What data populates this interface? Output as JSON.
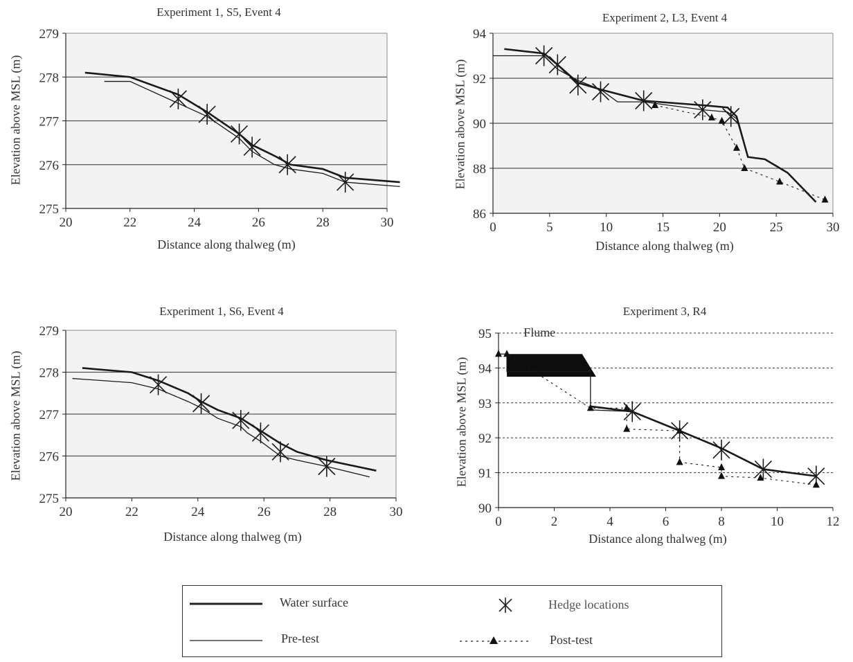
{
  "charts": [
    {
      "title": "Experiment 1, S5, Event 4",
      "xlabel": "Distance along thalweg (m)",
      "ylabel": "Elevation above MSL (m)",
      "xlim": [
        20,
        30
      ],
      "ylim": [
        275,
        279
      ],
      "xticks": [
        "20",
        "22",
        "24",
        "26",
        "28",
        "30"
      ],
      "yticks": [
        "275",
        "276",
        "277",
        "278",
        "279"
      ]
    },
    {
      "title": "Experiment 2, L3, Event 4",
      "xlabel": "Distance along thalweg (m)",
      "ylabel": "Elevation above MSL (m)",
      "xlim": [
        0,
        30
      ],
      "ylim": [
        86,
        94
      ],
      "xticks": [
        "0",
        "5",
        "10",
        "15",
        "20",
        "25",
        "30"
      ],
      "yticks": [
        "86",
        "88",
        "90",
        "92",
        "94"
      ]
    },
    {
      "title": "Experiment 1, S6, Event 4",
      "xlabel": "Distance along thalweg (m)",
      "ylabel": "Elevation above MSL (m)",
      "xlim": [
        20,
        30
      ],
      "ylim": [
        275,
        279
      ],
      "xticks": [
        "20",
        "22",
        "24",
        "26",
        "28",
        "30"
      ],
      "yticks": [
        "275",
        "276",
        "277",
        "278",
        "279"
      ]
    },
    {
      "title": "Experiment 3, R4",
      "xlabel": "Distance along thalweg (m)",
      "ylabel": "Elevation above MSL (m)",
      "xlim": [
        0,
        12
      ],
      "ylim": [
        90,
        95
      ],
      "xticks": [
        "0",
        "2",
        "4",
        "6",
        "8",
        "10",
        "12"
      ],
      "yticks": [
        "90",
        "91",
        "92",
        "93",
        "94",
        "95"
      ],
      "annotation": "Flume"
    }
  ],
  "legend": {
    "water_surface": "Water surface",
    "pre_test": "Pre-test",
    "hedge_locations": "Hedge locations",
    "post_test": "Post-test"
  },
  "chart_data": [
    {
      "type": "line",
      "title": "Experiment 1, S5, Event 4",
      "xlabel": "Distance along thalweg (m)",
      "ylabel": "Elevation above MSL (m)",
      "xlim": [
        20,
        30
      ],
      "ylim": [
        275,
        279
      ],
      "grid": true,
      "series": [
        {
          "name": "Water surface",
          "x": [
            20.6,
            22,
            23.5,
            24.4,
            25,
            25.4,
            25.8,
            26.5,
            27,
            28,
            28.7,
            30.4
          ],
          "y": [
            278.1,
            278.0,
            277.6,
            277.2,
            276.9,
            276.7,
            276.45,
            276.2,
            276.0,
            275.9,
            275.7,
            275.6
          ]
        },
        {
          "name": "Pre-test",
          "x": [
            21.2,
            22,
            23.5,
            24.4,
            25.4,
            25.8,
            26.5,
            27,
            28,
            28.7,
            30.4
          ],
          "y": [
            277.9,
            277.9,
            277.4,
            277.1,
            276.6,
            276.3,
            276.0,
            275.9,
            275.8,
            275.6,
            275.5
          ]
        },
        {
          "name": "Hedge locations",
          "x": [
            23.5,
            24.4,
            25.4,
            25.8,
            26.9,
            28.7
          ],
          "y": [
            277.5,
            277.15,
            276.7,
            276.4,
            276.0,
            275.6
          ]
        }
      ]
    },
    {
      "type": "line",
      "title": "Experiment 2, L3, Event 4",
      "xlabel": "Distance along thalweg (m)",
      "ylabel": "Elevation above MSL (m)",
      "xlim": [
        0,
        30
      ],
      "ylim": [
        86,
        94
      ],
      "grid": true,
      "series": [
        {
          "name": "Water surface",
          "x": [
            1,
            4.5,
            5.7,
            7.5,
            9.5,
            13.3,
            18.5,
            20.7,
            21.5,
            22.5,
            24,
            26,
            28.5
          ],
          "y": [
            93.3,
            93.1,
            92.6,
            91.8,
            91.5,
            91.0,
            90.8,
            90.7,
            90.3,
            88.5,
            88.4,
            87.8,
            86.5
          ]
        },
        {
          "name": "Pre-test",
          "x": [
            0,
            4.5,
            5.7,
            7.5,
            9.5,
            11,
            13.3,
            18.5,
            20.7,
            21.5,
            22.5,
            24,
            26,
            28.5
          ],
          "y": [
            93.0,
            93.0,
            92.4,
            91.9,
            91.5,
            90.95,
            90.95,
            90.6,
            90.5,
            90.2,
            88.5,
            88.4,
            87.8,
            86.5
          ]
        },
        {
          "name": "Hedge locations",
          "x": [
            4.5,
            5.7,
            7.5,
            9.5,
            13.3,
            18.5,
            21
          ],
          "y": [
            93.0,
            92.6,
            91.7,
            91.4,
            91.0,
            90.6,
            90.3
          ]
        },
        {
          "name": "Post-test",
          "x": [
            14.3,
            19.3,
            20.2,
            21.5,
            22.2,
            25.3,
            29.3
          ],
          "y": [
            90.8,
            90.25,
            90.1,
            88.9,
            88.0,
            87.4,
            86.6
          ]
        }
      ]
    },
    {
      "type": "line",
      "title": "Experiment 1, S6, Event 4",
      "xlabel": "Distance along thalweg (m)",
      "ylabel": "Elevation above MSL (m)",
      "xlim": [
        20,
        30
      ],
      "ylim": [
        275,
        279
      ],
      "grid": true,
      "series": [
        {
          "name": "Water surface",
          "x": [
            20.5,
            22,
            22.8,
            23.7,
            24.1,
            24.6,
            25.3,
            25.5,
            25.9,
            26.5,
            27,
            27.9,
            29.4
          ],
          "y": [
            278.1,
            278.0,
            277.8,
            277.5,
            277.3,
            277.1,
            276.9,
            276.8,
            276.6,
            276.3,
            276.1,
            275.9,
            275.65
          ]
        },
        {
          "name": "Pre-test",
          "x": [
            20.2,
            22,
            22.8,
            23.7,
            24.1,
            24.6,
            25.3,
            25.5,
            25.9,
            26.5,
            27,
            27.9,
            29.2
          ],
          "y": [
            277.85,
            277.75,
            277.6,
            277.3,
            277.15,
            276.9,
            276.7,
            276.55,
            276.35,
            276.0,
            275.9,
            275.75,
            275.5
          ]
        },
        {
          "name": "Hedge locations",
          "x": [
            22.8,
            24.1,
            25.3,
            25.9,
            26.5,
            27.9
          ],
          "y": [
            277.7,
            277.25,
            276.85,
            276.55,
            276.1,
            275.75
          ]
        }
      ]
    },
    {
      "type": "line",
      "title": "Experiment 3, R4",
      "xlabel": "Distance along thalweg (m)",
      "ylabel": "Elevation above MSL (m)",
      "xlim": [
        0,
        12
      ],
      "ylim": [
        90,
        95
      ],
      "grid": true,
      "series": [
        {
          "name": "Water surface",
          "x": [
            3.3,
            4.8,
            6.5,
            8,
            9.5,
            11.4
          ],
          "y": [
            92.9,
            92.75,
            92.2,
            91.7,
            91.1,
            90.9
          ]
        },
        {
          "name": "Pre-test",
          "x": [
            0,
            0.3,
            0.3,
            3.3,
            3.3,
            4.8,
            6.5,
            8,
            9.5,
            11.4
          ],
          "y": [
            94.4,
            94.4,
            93.9,
            93.9,
            92.8,
            92.75,
            92.2,
            91.7,
            91.1,
            90.9
          ]
        },
        {
          "name": "Hedge locations",
          "x": [
            4.8,
            6.5,
            8,
            9.5,
            11.4
          ],
          "y": [
            92.75,
            92.2,
            91.65,
            91.1,
            90.9
          ]
        },
        {
          "name": "Post-test",
          "x": [
            0,
            0.3,
            3.3,
            4.6,
            4.6,
            6.5,
            6.5,
            8,
            8,
            9.4,
            11.4
          ],
          "y": [
            94.4,
            94.4,
            92.85,
            92.85,
            92.25,
            92.2,
            91.3,
            91.15,
            90.9,
            90.85,
            90.65
          ]
        }
      ],
      "annotations": [
        "Flume"
      ]
    }
  ]
}
